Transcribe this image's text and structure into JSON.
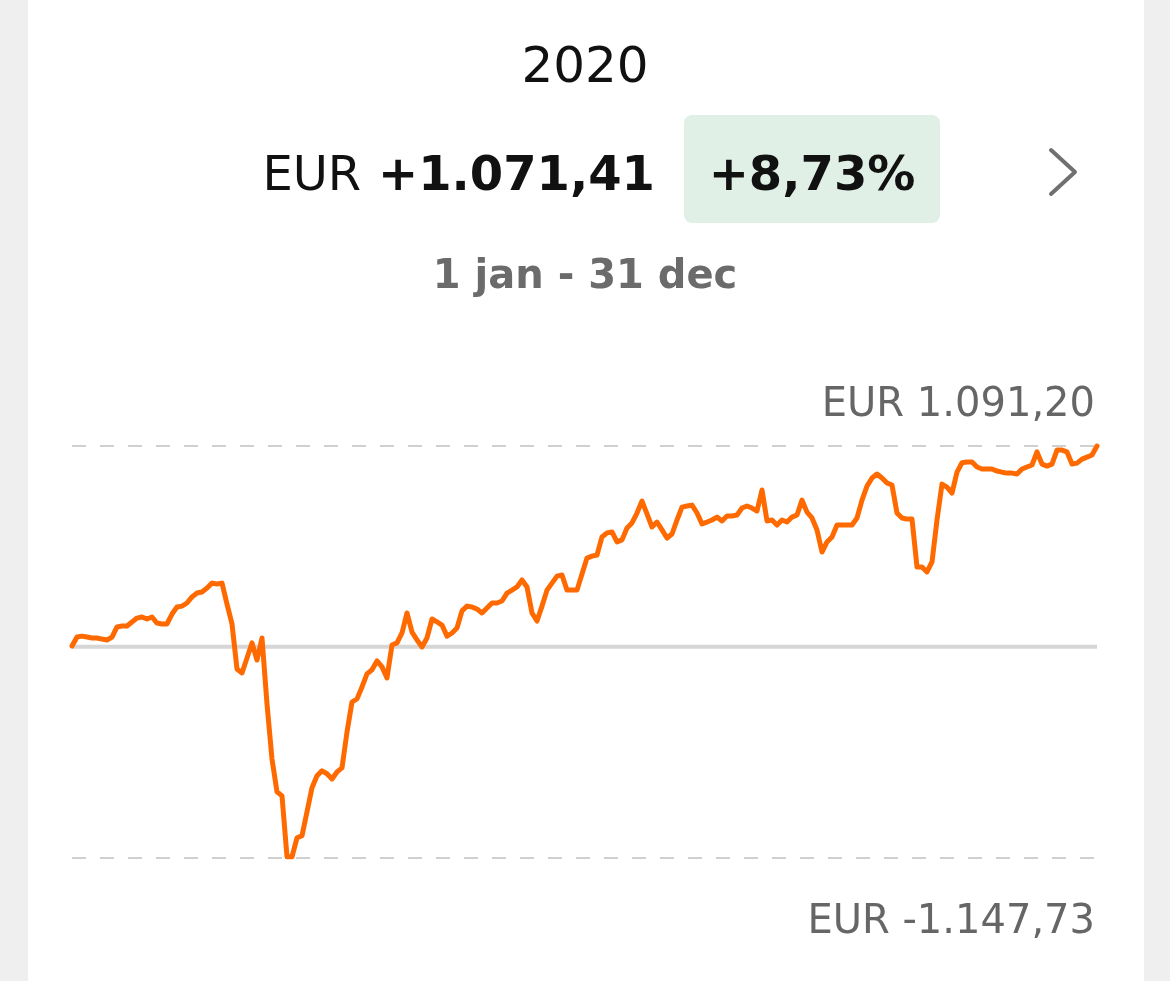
{
  "chart_data": {
    "type": "line",
    "title": "2020",
    "subtitle": "EUR +1.071,41",
    "annotations": [
      "+8,73%",
      "1 jan - 31 dec"
    ],
    "categories": [
      null,
      null,
      null,
      null,
      null,
      null,
      null,
      null,
      null,
      null,
      null,
      null,
      null,
      null,
      null,
      null,
      null,
      null,
      null,
      null,
      null,
      null,
      null,
      null,
      null,
      null,
      null,
      null,
      null,
      null,
      null,
      null,
      null,
      null,
      null,
      null,
      null,
      null,
      null,
      null,
      null,
      null,
      null,
      null,
      null,
      null,
      null,
      null,
      null,
      null,
      null,
      null,
      null,
      null,
      null,
      null,
      null,
      null,
      null,
      null,
      null,
      null,
      null,
      null,
      null,
      null,
      null,
      null,
      null,
      null,
      null,
      null,
      null,
      null,
      null,
      null,
      null,
      null,
      null,
      null,
      null,
      null,
      null,
      null,
      null,
      null,
      null,
      null,
      null,
      null,
      null,
      null,
      null,
      null,
      null,
      null,
      null,
      null,
      null,
      null,
      null,
      null,
      null,
      null,
      null,
      null,
      null,
      null,
      null,
      null,
      null,
      null,
      null,
      null,
      null,
      null,
      null,
      null,
      null,
      null,
      null,
      null,
      null,
      null,
      null,
      null,
      null,
      null,
      null,
      null,
      null,
      null,
      null,
      null,
      null,
      null,
      null,
      null,
      null,
      null,
      null,
      null,
      null,
      null,
      null,
      null,
      null,
      null,
      null,
      null,
      null,
      null,
      null,
      null,
      null,
      null,
      null,
      null,
      null,
      null,
      null,
      null,
      null,
      null,
      null,
      null,
      null,
      null,
      null,
      null,
      null,
      null,
      null,
      null,
      null,
      null,
      null,
      null,
      null,
      null,
      null,
      null,
      null,
      null,
      null,
      null,
      null,
      null,
      null,
      null,
      null,
      null,
      null,
      null,
      null,
      null,
      null,
      null,
      null,
      null,
      null,
      null,
      null,
      null,
      null,
      null
    ],
    "series": [
      {
        "color": "#ff6a00",
        "values": [
          4,
          53,
          58,
          53,
          48,
          48,
          42,
          37,
          53,
          108,
          113,
          113,
          135,
          156,
          162,
          151,
          162,
          129,
          124,
          124,
          178,
          216,
          221,
          238,
          271,
          292,
          298,
          319,
          346,
          341,
          346,
          232,
          124,
          -121,
          -142,
          -61,
          21,
          -72,
          48,
          -311,
          -610,
          -788,
          -810,
          -1141,
          -1141,
          -1038,
          -1027,
          -897,
          -766,
          -701,
          -674,
          -690,
          -718,
          -680,
          -658,
          -463,
          -300,
          -283,
          -218,
          -147,
          -125,
          -77,
          -109,
          -169,
          10,
          21,
          75,
          184,
          80,
          37,
          -1,
          48,
          151,
          135,
          118,
          58,
          75,
          102,
          195,
          221,
          216,
          205,
          184,
          211,
          238,
          238,
          249,
          292,
          308,
          325,
          363,
          325,
          184,
          140,
          221,
          308,
          346,
          384,
          390,
          308,
          308,
          308,
          395,
          482,
          493,
          499,
          597,
          619,
          624,
          570,
          581,
          646,
          673,
          727,
          792,
          722,
          651,
          678,
          635,
          591,
          613,
          689,
          759,
          765,
          770,
          727,
          668,
          678,
          689,
          705,
          684,
          711,
          711,
          716,
          754,
          765,
          754,
          738,
          852,
          684,
          689,
          662,
          689,
          678,
          705,
          716,
          797,
          732,
          700,
          635,
          515,
          570,
          597,
          662,
          662,
          662,
          662,
          700,
          797,
          873,
          917,
          939,
          917,
          890,
          879,
          727,
          700,
          694,
          694,
          434,
          434,
          407,
          461,
          689,
          884,
          868,
          835,
          949,
          1000,
          1004,
          1004,
          977,
          966,
          966,
          966,
          955,
          949,
          944,
          944,
          939,
          966,
          977,
          988,
          1059,
          993,
          982,
          993,
          1069,
          1069,
          1059,
          993,
          998,
          1020,
          1031,
          1042,
          1091
        ]
      }
    ],
    "ylim": [
      -1147.73,
      1091.2
    ],
    "ref_lines": [
      {
        "axis": "y",
        "value": 1091.2,
        "label": "EUR 1.091,20",
        "color": "#d0d0d0",
        "line_style": "dashed"
      },
      {
        "axis": "y",
        "value": -1147.73,
        "label": "EUR -1.147,73",
        "color": "#d0d0d0",
        "line_style": "dashed"
      },
      {
        "axis": "y",
        "value": 0,
        "color": "#d6d6d6"
      }
    ],
    "marker": "none",
    "line_style": "solid"
  }
}
